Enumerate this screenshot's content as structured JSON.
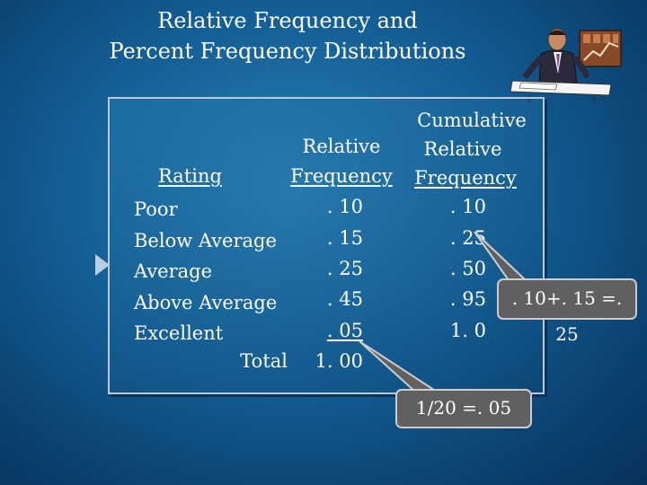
{
  "title": {
    "line1": "Relative Frequency and",
    "line2": "Percent Frequency Distributions"
  },
  "table": {
    "header_relative_line1": "Relative",
    "header_relative_line2": "Frequency",
    "header_cumulative_line1": "Cumulative",
    "header_cumulative_line2": "Relative",
    "header_cumulative_line3": "Frequency",
    "header_rating": "Rating",
    "rows": [
      {
        "rating": "Poor",
        "relative": ". 10",
        "cumulative": ". 10"
      },
      {
        "rating": "Below Average",
        "relative": ". 15",
        "cumulative": ". 25"
      },
      {
        "rating": "Average",
        "relative": ". 25",
        "cumulative": ". 50"
      },
      {
        "rating": "Above Average",
        "relative": ". 45",
        "cumulative": ". 95"
      },
      {
        "rating": "Excellent",
        "relative": ". 05",
        "cumulative": "1. 0"
      }
    ],
    "total_label": "Total",
    "total_value": "1. 00"
  },
  "callouts": {
    "sum": ". 10+. 15 =. 25",
    "fraction": "1/20 =. 05"
  },
  "colors": {
    "background": "#135e94",
    "callout_fill": "#606060",
    "callout_border": "#cccccc"
  },
  "icons": {
    "clipart": "businessman-at-desk-icon",
    "pointer": "triangle-pointer-icon"
  }
}
